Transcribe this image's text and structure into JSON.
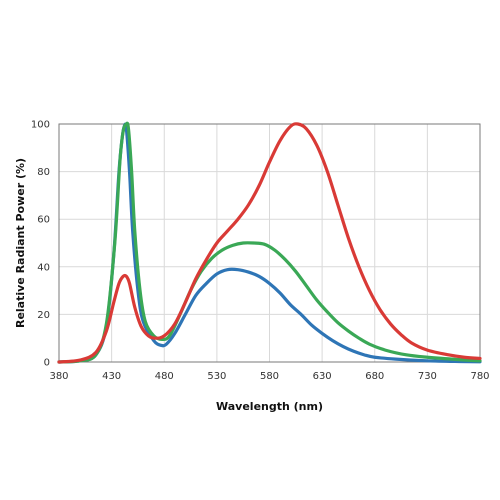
{
  "chart_data": {
    "type": "line",
    "title": "",
    "xlabel": "Wavelength (nm)",
    "ylabel": "Relative Radiant Power (%)",
    "xlim": [
      380,
      780
    ],
    "ylim": [
      0,
      100
    ],
    "x_ticks": [
      380,
      430,
      480,
      530,
      580,
      630,
      680,
      730,
      780
    ],
    "y_ticks": [
      0,
      20,
      40,
      60,
      80,
      100
    ],
    "grid": true,
    "legend": "none",
    "series": [
      {
        "color": "#2e75b6",
        "points": [
          [
            380,
            0
          ],
          [
            400,
            0.5
          ],
          [
            415,
            3
          ],
          [
            425,
            15
          ],
          [
            432,
            45
          ],
          [
            437,
            80
          ],
          [
            440,
            94
          ],
          [
            442,
            99
          ],
          [
            444,
            98
          ],
          [
            447,
            80
          ],
          [
            450,
            55
          ],
          [
            455,
            30
          ],
          [
            460,
            17
          ],
          [
            470,
            9
          ],
          [
            477,
            7
          ],
          [
            482,
            7.5
          ],
          [
            490,
            12
          ],
          [
            500,
            20
          ],
          [
            510,
            28
          ],
          [
            520,
            33
          ],
          [
            530,
            37
          ],
          [
            540,
            38.8
          ],
          [
            550,
            38.8
          ],
          [
            560,
            37.8
          ],
          [
            570,
            36
          ],
          [
            580,
            33
          ],
          [
            590,
            29
          ],
          [
            600,
            24
          ],
          [
            610,
            20
          ],
          [
            620,
            15.5
          ],
          [
            630,
            12
          ],
          [
            640,
            9
          ],
          [
            650,
            6.5
          ],
          [
            660,
            4.5
          ],
          [
            670,
            3
          ],
          [
            680,
            2
          ],
          [
            700,
            1.2
          ],
          [
            730,
            0.5
          ],
          [
            760,
            0.2
          ],
          [
            780,
            0.1
          ]
        ]
      },
      {
        "color": "#3aa856",
        "points": [
          [
            380,
            0
          ],
          [
            400,
            0.5
          ],
          [
            415,
            3
          ],
          [
            425,
            16
          ],
          [
            433,
            50
          ],
          [
            438,
            85
          ],
          [
            441,
            97
          ],
          [
            444,
            100
          ],
          [
            446,
            98
          ],
          [
            449,
            80
          ],
          [
            452,
            55
          ],
          [
            457,
            30
          ],
          [
            462,
            17
          ],
          [
            470,
            11
          ],
          [
            478,
            9.5
          ],
          [
            485,
            11
          ],
          [
            495,
            20
          ],
          [
            505,
            30
          ],
          [
            515,
            38
          ],
          [
            525,
            43.5
          ],
          [
            535,
            47
          ],
          [
            545,
            49
          ],
          [
            555,
            50
          ],
          [
            565,
            50
          ],
          [
            575,
            49.5
          ],
          [
            585,
            47
          ],
          [
            595,
            43
          ],
          [
            605,
            38
          ],
          [
            615,
            32
          ],
          [
            625,
            26
          ],
          [
            635,
            21
          ],
          [
            645,
            16.5
          ],
          [
            655,
            13
          ],
          [
            665,
            10
          ],
          [
            675,
            7.5
          ],
          [
            690,
            5
          ],
          [
            710,
            3
          ],
          [
            730,
            2
          ],
          [
            760,
            1
          ],
          [
            780,
            0.5
          ]
        ]
      },
      {
        "color": "#d93a36",
        "points": [
          [
            380,
            0
          ],
          [
            400,
            0.8
          ],
          [
            415,
            4
          ],
          [
            425,
            13
          ],
          [
            432,
            25
          ],
          [
            437,
            33
          ],
          [
            441,
            36
          ],
          [
            444,
            36
          ],
          [
            447,
            33
          ],
          [
            452,
            23
          ],
          [
            458,
            15
          ],
          [
            465,
            11
          ],
          [
            472,
            10
          ],
          [
            480,
            11
          ],
          [
            490,
            16
          ],
          [
            500,
            25
          ],
          [
            510,
            35
          ],
          [
            520,
            43
          ],
          [
            530,
            50
          ],
          [
            540,
            55
          ],
          [
            550,
            60
          ],
          [
            560,
            66
          ],
          [
            570,
            74
          ],
          [
            580,
            84
          ],
          [
            590,
            93
          ],
          [
            600,
            99
          ],
          [
            607,
            100
          ],
          [
            615,
            98
          ],
          [
            625,
            91
          ],
          [
            635,
            80
          ],
          [
            645,
            66
          ],
          [
            655,
            52
          ],
          [
            665,
            40
          ],
          [
            675,
            30
          ],
          [
            685,
            22
          ],
          [
            695,
            16
          ],
          [
            705,
            11.5
          ],
          [
            715,
            8
          ],
          [
            730,
            5
          ],
          [
            750,
            3
          ],
          [
            765,
            2
          ],
          [
            780,
            1.5
          ]
        ]
      }
    ]
  }
}
